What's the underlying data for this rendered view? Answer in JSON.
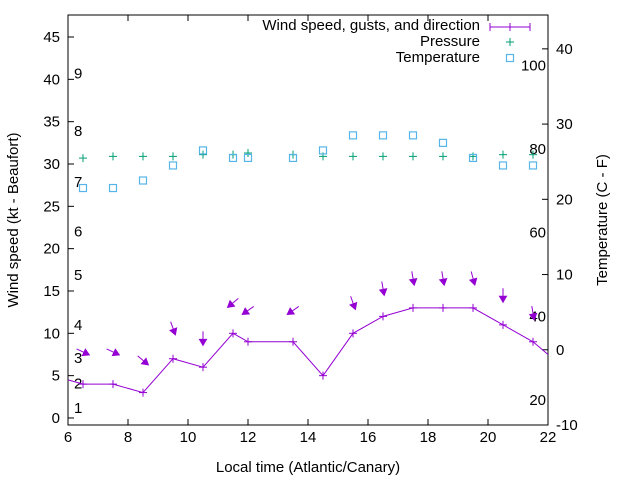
{
  "chart_data": {
    "type": "line",
    "title": "",
    "xlabel": "Local time (Atlantic/Canary)",
    "ylabel": "Wind speed (kt - Beaufort)",
    "y2label": "Temperature (C - F)",
    "xlim": [
      6,
      22
    ],
    "ylim": [
      -0.83,
      47.6
    ],
    "y2lim": [
      -10,
      44.5
    ],
    "x_ticks": [
      6,
      8,
      10,
      12,
      14,
      16,
      18,
      20,
      22
    ],
    "y_ticks": [
      0,
      5,
      10,
      15,
      20,
      25,
      30,
      35,
      40,
      45
    ],
    "y2_ticks": [
      -10,
      0,
      10,
      20,
      30,
      40
    ],
    "beaufort_labels": [
      {
        "label": "1",
        "kt": 1.2
      },
      {
        "label": "2",
        "kt": 4.1
      },
      {
        "label": "3",
        "kt": 7.1
      },
      {
        "label": "4",
        "kt": 11.0
      },
      {
        "label": "5",
        "kt": 16.9
      },
      {
        "label": "6",
        "kt": 22.0
      },
      {
        "label": "7",
        "kt": 27.9
      },
      {
        "label": "8",
        "kt": 33.9
      },
      {
        "label": "9",
        "kt": 40.7
      }
    ],
    "fahrenheit_labels": [
      {
        "label": "20",
        "celsius": -6.7
      },
      {
        "label": "40",
        "celsius": 4.4
      },
      {
        "label": "60",
        "celsius": 15.6
      },
      {
        "label": "80",
        "celsius": 26.7
      },
      {
        "label": "100",
        "celsius": 37.8
      }
    ],
    "legend": {
      "position": "top-right",
      "entries": [
        "Wind speed, gusts, and direction",
        "Pressure",
        "Temperature"
      ]
    },
    "colors": {
      "wind": "#9400d3",
      "pressure": "#009e73",
      "temperature": "#56b4e9"
    },
    "series": [
      {
        "name": "Wind speed, gusts, and direction",
        "line_start": [
          6,
          4.5
        ],
        "line_end": [
          22,
          7.5
        ],
        "x": [
          6.5,
          7.5,
          8.5,
          9.5,
          10.5,
          11.5,
          12,
          13.5,
          14.5,
          15.5,
          16.5,
          17.5,
          18.5,
          19.5,
          20.5,
          21.5
        ],
        "speed": [
          4,
          4,
          3,
          7,
          6,
          10,
          9,
          9,
          5,
          10,
          12,
          13,
          13,
          13,
          11,
          9
        ],
        "gust": [
          7.8,
          7.8,
          6.8,
          10.6,
          9.4,
          13.6,
          12.7,
          12.7,
          null,
          13.6,
          15.3,
          16.5,
          16.5,
          16.5,
          14.5,
          12.4
        ],
        "direction_from_deg": [
          295,
          295,
          310,
          340,
          0,
          50,
          55,
          55,
          null,
          340,
          350,
          350,
          350,
          345,
          0,
          350
        ]
      },
      {
        "name": "Pressure",
        "axis": "left",
        "x": [
          6.5,
          7.5,
          8.5,
          9.5,
          10.5,
          11.5,
          12,
          13.5,
          14.5,
          15.5,
          16.5,
          17.5,
          18.5,
          19.5,
          20.5,
          21.5
        ],
        "values": [
          30.7,
          30.9,
          30.9,
          30.9,
          31.1,
          31.1,
          31.3,
          31.1,
          30.9,
          30.9,
          30.9,
          30.9,
          30.9,
          30.9,
          31.1,
          31.1
        ]
      },
      {
        "name": "Temperature",
        "axis": "right",
        "x": [
          6.5,
          7.5,
          8.5,
          9.5,
          10.5,
          11.5,
          12,
          13.5,
          14.5,
          15.5,
          16.5,
          17.5,
          18.5,
          19.5,
          20.5,
          21.5
        ],
        "values": [
          21.5,
          21.5,
          22.5,
          24.5,
          26.5,
          25.5,
          25.5,
          25.5,
          26.5,
          28.5,
          28.5,
          28.5,
          27.5,
          25.5,
          24.5,
          24.5
        ]
      }
    ]
  }
}
